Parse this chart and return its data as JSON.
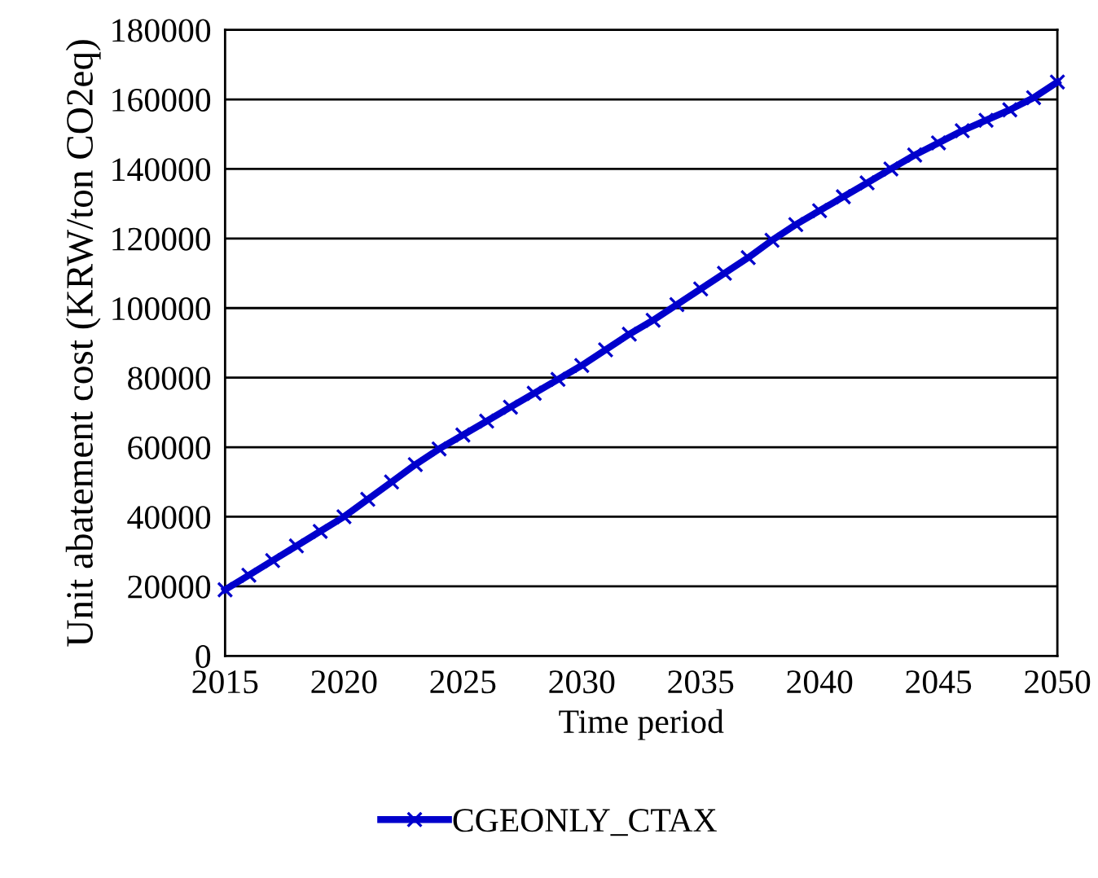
{
  "chart_data": {
    "type": "line",
    "xlabel": "Time period",
    "ylabel": "Unit abatement cost (KRW/ton CO2eq)",
    "x": [
      2015,
      2016,
      2017,
      2018,
      2019,
      2020,
      2021,
      2022,
      2023,
      2024,
      2025,
      2026,
      2027,
      2028,
      2029,
      2030,
      2031,
      2032,
      2033,
      2034,
      2035,
      2036,
      2037,
      2038,
      2039,
      2040,
      2041,
      2042,
      2043,
      2044,
      2045,
      2046,
      2047,
      2048,
      2049,
      2050
    ],
    "series": [
      {
        "name": "CGEONLY_CTAX",
        "color": "#0000cc",
        "values": [
          19000,
          23200,
          27400,
          31600,
          35800,
          40000,
          45000,
          50000,
          55000,
          59500,
          63500,
          67500,
          71500,
          75500,
          79500,
          83500,
          88000,
          92500,
          96500,
          101000,
          105500,
          110000,
          114500,
          119500,
          124000,
          128000,
          132000,
          136000,
          140000,
          144000,
          147500,
          151000,
          154000,
          157000,
          160500,
          165000
        ]
      }
    ],
    "xlim": [
      2015,
      2050
    ],
    "xticks": [
      2015,
      2020,
      2025,
      2030,
      2035,
      2040,
      2045,
      2050
    ],
    "ylim": [
      0,
      180000
    ],
    "yticks": [
      0,
      20000,
      40000,
      60000,
      80000,
      100000,
      120000,
      140000,
      160000,
      180000
    ],
    "grid": "y",
    "legend": "bottom",
    "marker": "cross",
    "line_style": "solid"
  }
}
